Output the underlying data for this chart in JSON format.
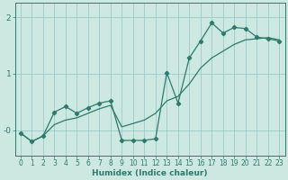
{
  "xlabel": "Humidex (Indice chaleur)",
  "background_color": "#cce8e0",
  "line_color": "#2d7a6e",
  "grid_color": "#99cccc",
  "x": [
    0,
    1,
    2,
    3,
    4,
    5,
    6,
    7,
    8,
    9,
    10,
    11,
    12,
    13,
    14,
    15,
    16,
    17,
    18,
    19,
    20,
    21,
    22,
    23
  ],
  "y_jagged": [
    -0.05,
    -0.2,
    -0.1,
    0.32,
    0.42,
    0.3,
    0.4,
    0.48,
    0.52,
    -0.18,
    -0.18,
    -0.18,
    -0.15,
    1.02,
    0.48,
    1.28,
    1.58,
    1.9,
    1.72,
    1.82,
    1.8,
    1.65,
    1.62,
    1.58
  ],
  "y_smooth": [
    -0.05,
    -0.2,
    -0.1,
    0.1,
    0.18,
    0.22,
    0.3,
    0.38,
    0.44,
    0.06,
    0.12,
    0.18,
    0.3,
    0.52,
    0.6,
    0.82,
    1.1,
    1.28,
    1.4,
    1.52,
    1.6,
    1.62,
    1.64,
    1.6
  ],
  "ylim": [
    -0.45,
    2.25
  ],
  "xlim": [
    -0.5,
    23.5
  ],
  "yticks": [
    2,
    1,
    0
  ],
  "ytick_labels": [
    "2",
    "1",
    "-0"
  ],
  "figsize": [
    3.2,
    2.0
  ],
  "dpi": 100
}
